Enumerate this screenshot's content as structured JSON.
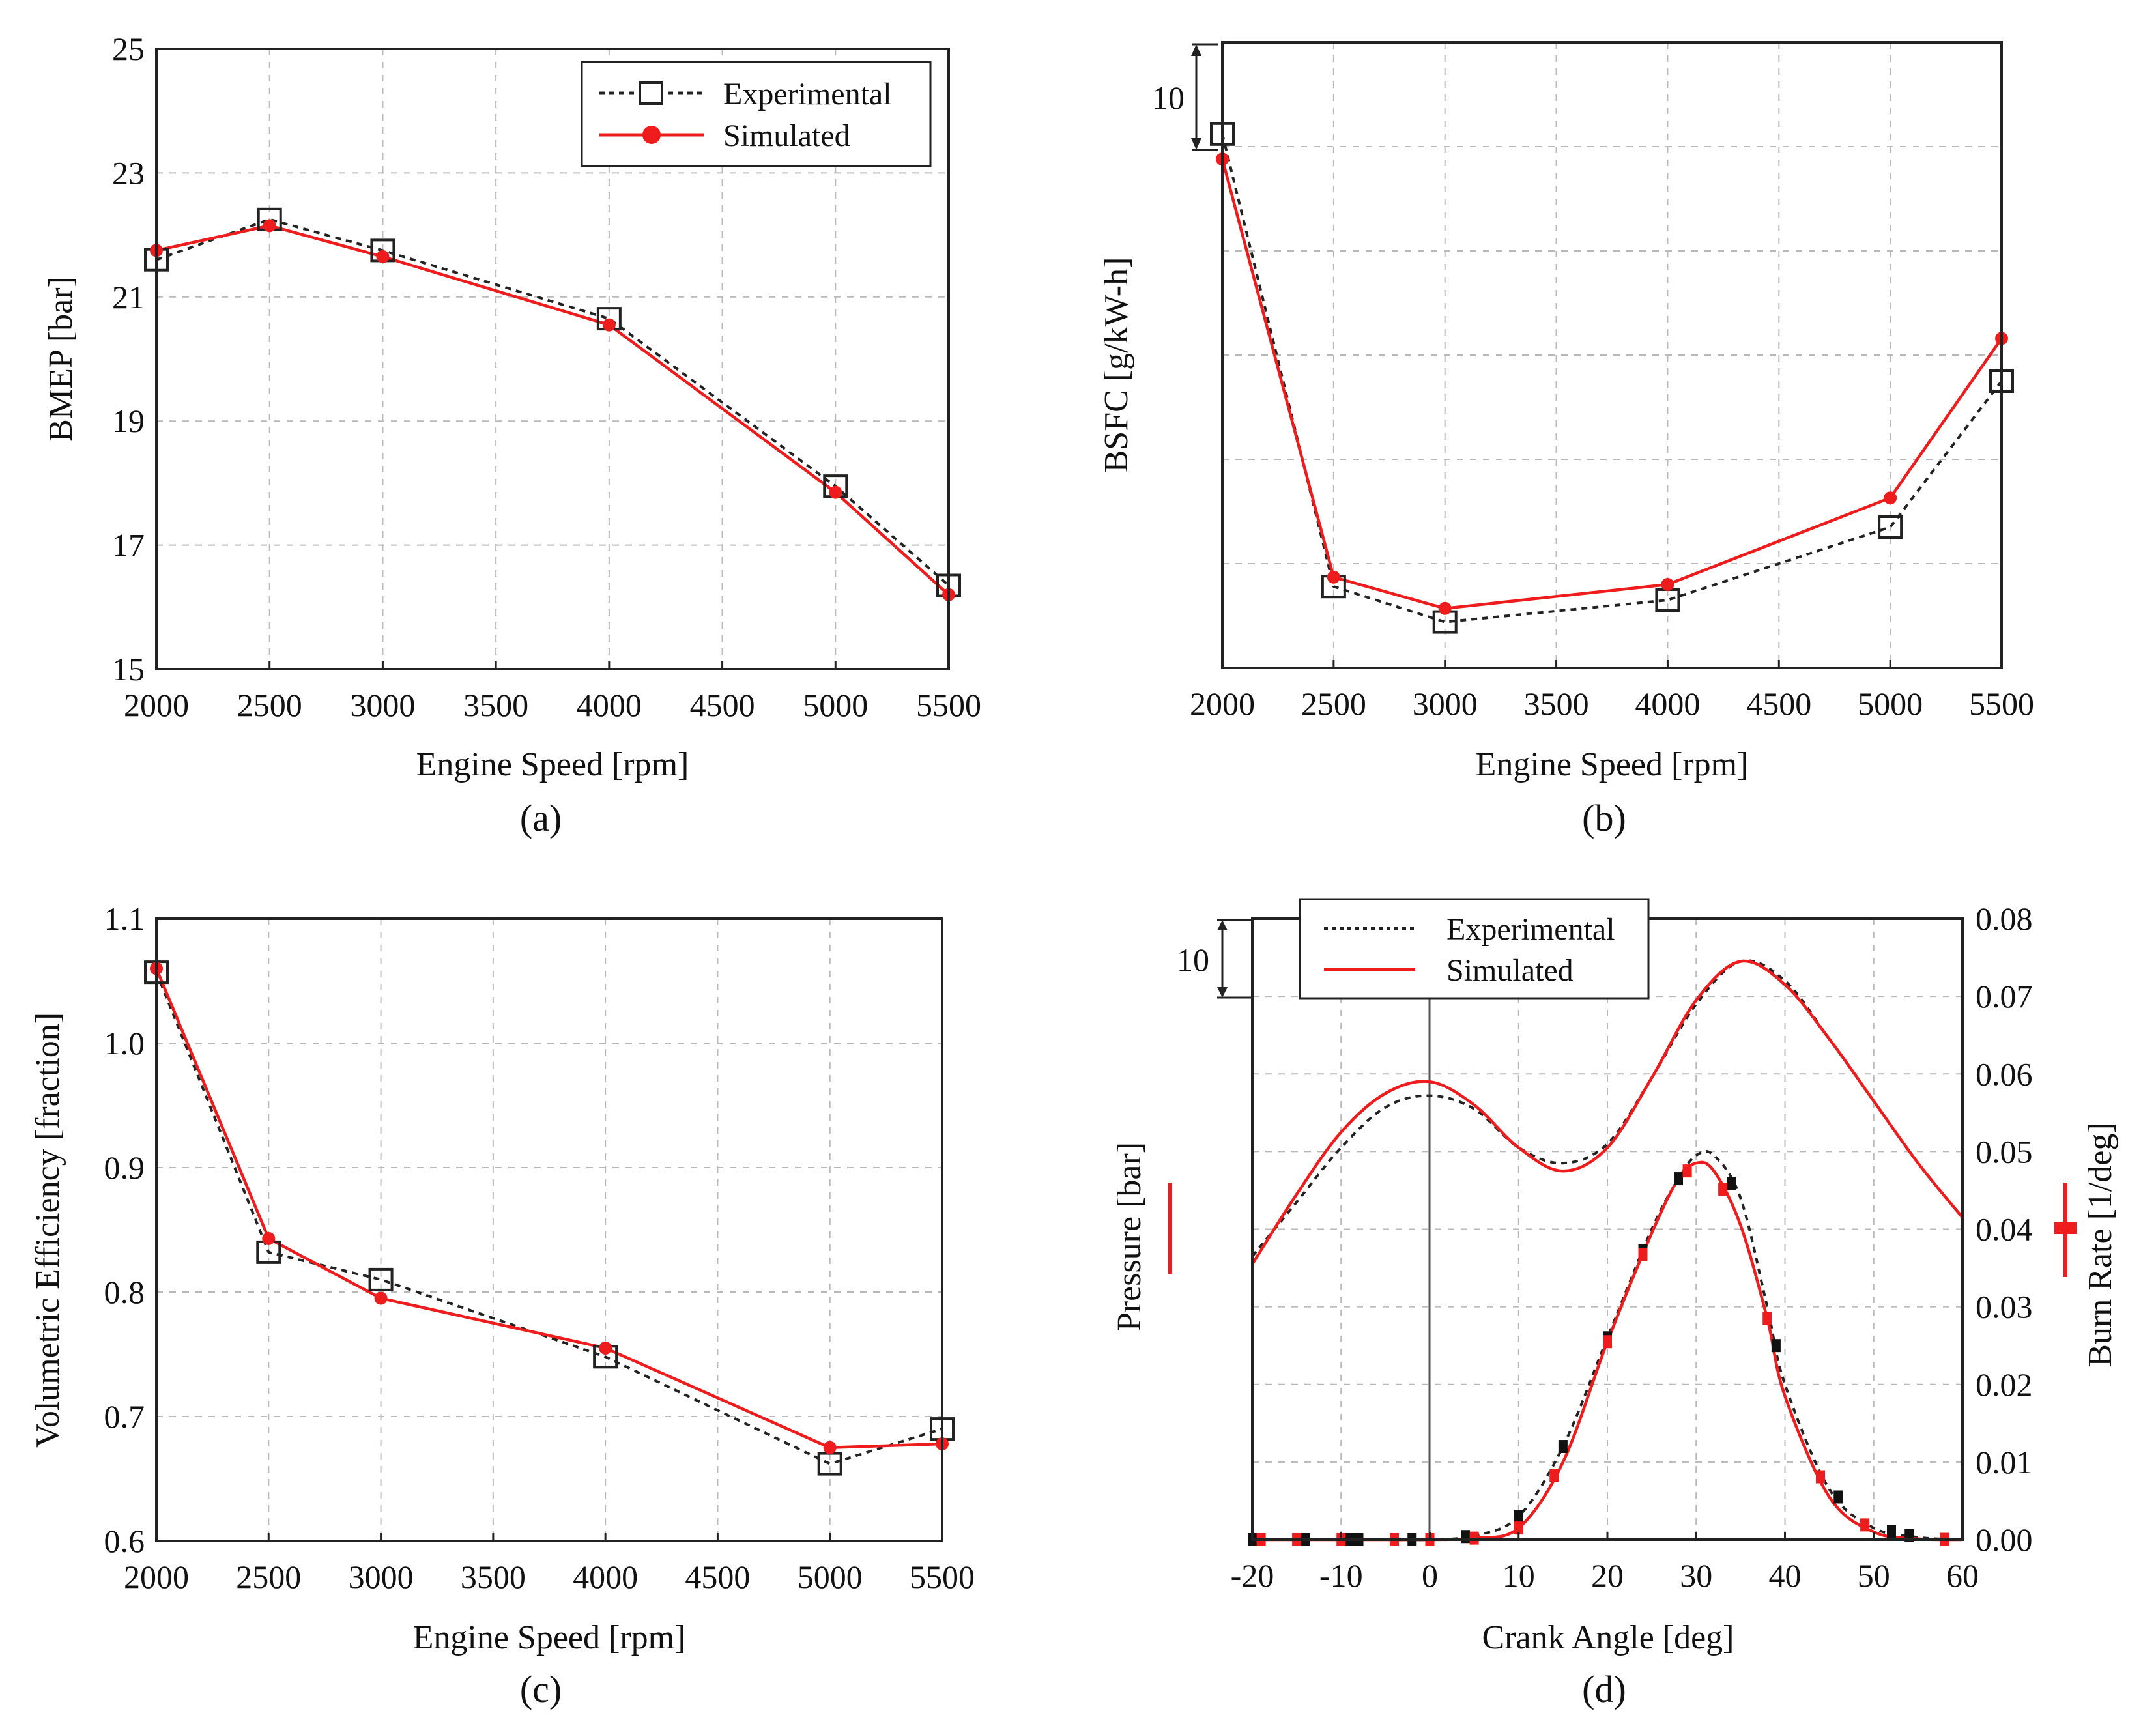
{
  "colors": {
    "experimental": "#222222",
    "simulated": "#ee1c1c",
    "grid": "#b9b9b9",
    "frame": "#222222"
  },
  "legend": {
    "experimental": "Experimental",
    "simulated": "Simulated"
  },
  "chart_data": [
    {
      "id": "a",
      "type": "line",
      "panel_label": "(a)",
      "xlabel": "Engine Speed [rpm]",
      "ylabel": "BMEP [bar]",
      "xlim": [
        2000,
        5500
      ],
      "ylim": [
        15,
        25
      ],
      "xticks": [
        "2000",
        "2500",
        "3000",
        "3500",
        "4000",
        "4500",
        "5000",
        "5500"
      ],
      "yticks": [
        "15",
        "17",
        "19",
        "21",
        "23",
        "25"
      ],
      "legend_position": "top-right",
      "x": [
        2000,
        2500,
        3000,
        4000,
        5000,
        5500
      ],
      "series": [
        {
          "name": "Experimental",
          "values": [
            21.6,
            22.25,
            21.75,
            20.65,
            17.95,
            16.35
          ]
        },
        {
          "name": "Simulated",
          "values": [
            21.75,
            22.15,
            21.65,
            20.55,
            17.85,
            16.2
          ]
        }
      ]
    },
    {
      "id": "b",
      "type": "line",
      "panel_label": "(b)",
      "xlabel": "Engine Speed [rpm]",
      "ylabel": "BSFC [g/kW-h]",
      "xlim": [
        2000,
        5500
      ],
      "ylim": [
        0,
        60
      ],
      "xticks": [
        "2000",
        "2500",
        "3000",
        "3500",
        "4000",
        "4500",
        "5000",
        "5500"
      ],
      "yticks": [],
      "scale_bar_label": "10",
      "x": [
        2000,
        2500,
        3000,
        4000,
        5000,
        5500
      ],
      "series": [
        {
          "name": "Experimental",
          "values": [
            51.2,
            7.8,
            4.4,
            6.5,
            13.5,
            27.5
          ]
        },
        {
          "name": "Simulated",
          "values": [
            48.8,
            8.7,
            5.7,
            8.0,
            16.3,
            31.6
          ]
        }
      ]
    },
    {
      "id": "c",
      "type": "line",
      "panel_label": "(c)",
      "xlabel": "Engine Speed [rpm]",
      "ylabel": "Volumetric Efficiency [fraction]",
      "xlim": [
        2000,
        5500
      ],
      "ylim": [
        0.6,
        1.1
      ],
      "xticks": [
        "2000",
        "2500",
        "3000",
        "3500",
        "4000",
        "4500",
        "5000",
        "5500"
      ],
      "yticks": [
        "0.6",
        "0.7",
        "0.8",
        "0.9",
        "1.0",
        "1.1"
      ],
      "x": [
        2000,
        2500,
        3000,
        4000,
        5000,
        5500
      ],
      "series": [
        {
          "name": "Experimental",
          "values": [
            1.057,
            0.832,
            0.81,
            0.748,
            0.662,
            0.69
          ]
        },
        {
          "name": "Simulated",
          "values": [
            1.06,
            0.843,
            0.795,
            0.755,
            0.675,
            0.678
          ]
        }
      ]
    },
    {
      "id": "d",
      "type": "line",
      "panel_label": "(d)",
      "xlabel": "Crank Angle [deg]",
      "ylabel": "Pressure [bar]",
      "y2label": "Burn Rate [1/deg]",
      "xlim": [
        -20,
        60
      ],
      "y2lim": [
        0,
        0.08
      ],
      "xticks": [
        "-20",
        "-10",
        "0",
        "10",
        "20",
        "30",
        "40",
        "50",
        "60"
      ],
      "y2ticks": [
        "0.00",
        "0.01",
        "0.02",
        "0.03",
        "0.04",
        "0.05",
        "0.06",
        "0.07",
        "0.08"
      ],
      "scale_bar_label": "10",
      "legend_position": "top-left",
      "pressure_scale_per_10bar": 0.01,
      "pressure": {
        "x": [
          -20,
          -15,
          -10,
          -5,
          0,
          5,
          10,
          15,
          20,
          25,
          30,
          35,
          40,
          45,
          50,
          55,
          60
        ],
        "series": [
          {
            "name": "Experimental",
            "values": [
              0.0365,
              0.0435,
              0.0505,
              0.0557,
              0.0572,
              0.0555,
              0.0505,
              0.0485,
              0.051,
              0.0595,
              0.069,
              0.0745,
              0.072,
              0.0645,
              0.0565,
              0.0485,
              0.0415
            ]
          },
          {
            "name": "Simulated",
            "values": [
              0.0355,
              0.0445,
              0.0525,
              0.0575,
              0.059,
              0.056,
              0.0505,
              0.0475,
              0.0505,
              0.0595,
              0.0695,
              0.0745,
              0.0715,
              0.0645,
              0.0565,
              0.0485,
              0.0415
            ]
          }
        ]
      },
      "burn_rate": {
        "x": [
          -20,
          -15,
          -10,
          -5,
          0,
          5,
          10,
          15,
          20,
          25,
          28,
          30,
          32,
          35,
          38,
          40,
          45,
          50,
          55,
          60
        ],
        "series": [
          {
            "name": "Experimental",
            "values": [
              0,
              0,
              0,
              0,
              0,
              0.0005,
              0.003,
              0.012,
              0.026,
              0.04,
              0.0465,
              0.0495,
              0.0495,
              0.044,
              0.03,
              0.02,
              0.0065,
              0.0015,
              0.0003,
              0
            ]
          },
          {
            "name": "Simulated",
            "values": [
              0,
              0,
              0,
              0,
              0,
              0.0002,
              0.0015,
              0.01,
              0.0255,
              0.0395,
              0.0465,
              0.0485,
              0.0475,
              0.0405,
              0.0285,
              0.0185,
              0.0055,
              0.001,
              0.0001,
              0
            ]
          }
        ]
      },
      "burn_markers": {
        "experimental_x": [
          -20,
          -14,
          -9,
          -8,
          -2,
          4,
          10,
          15,
          20,
          24,
          28,
          34,
          39,
          46,
          52,
          54
        ],
        "simulated_x": [
          -19,
          -15,
          -10,
          -4,
          0,
          5,
          10,
          14,
          20,
          24,
          29,
          33,
          38,
          44,
          49,
          58
        ]
      }
    }
  ]
}
